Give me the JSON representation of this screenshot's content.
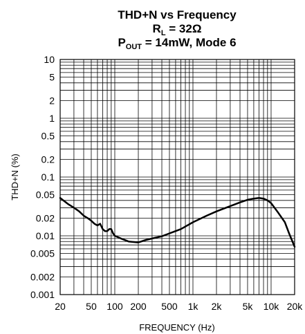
{
  "chart_data": {
    "type": "line",
    "title_parts": {
      "line1": "THD+N vs Frequency",
      "line2_main": "R",
      "line2_sub": "L",
      "line2_rest": " = 32Ω",
      "line3_main": "P",
      "line3_sub": "OUT",
      "line3_rest": " = 14mW, Mode 6"
    },
    "xlabel": "FREQUENCY (Hz)",
    "ylabel": "THD+N (%)",
    "x_scale": "log",
    "y_scale": "log",
    "xlim": [
      20,
      20000
    ],
    "ylim": [
      0.001,
      10
    ],
    "grid": true,
    "x_tick_labels": [
      "20",
      "50",
      "100",
      "200",
      "500",
      "1k",
      "2k",
      "5k",
      "10k",
      "20k"
    ],
    "x_tick_values": [
      20,
      50,
      100,
      200,
      500,
      1000,
      2000,
      5000,
      10000,
      20000
    ],
    "y_tick_labels": [
      "10",
      "5",
      "2",
      "1",
      "0.5",
      "0.2",
      "0.1",
      "0.05",
      "0.02",
      "0.01",
      "0.005",
      "0.002",
      "0.001"
    ],
    "y_tick_values": [
      10,
      5,
      2,
      1,
      0.5,
      0.2,
      0.1,
      0.05,
      0.02,
      0.01,
      0.005,
      0.002,
      0.001
    ],
    "series": [
      {
        "x": [
          20,
          25,
          30,
          35,
          40,
          45,
          50,
          55,
          60,
          65,
          70,
          75,
          80,
          85,
          90,
          95,
          100,
          120,
          150,
          200,
          250,
          300,
          400,
          500,
          700,
          1000,
          1500,
          2000,
          3000,
          4000,
          5000,
          6000,
          7000,
          8000,
          9000,
          10000,
          12000,
          15000,
          17000,
          20000
        ],
        "y": [
          0.044,
          0.035,
          0.03,
          0.026,
          0.022,
          0.02,
          0.018,
          0.016,
          0.015,
          0.016,
          0.013,
          0.012,
          0.012,
          0.013,
          0.013,
          0.011,
          0.01,
          0.009,
          0.008,
          0.0077,
          0.0085,
          0.009,
          0.0098,
          0.011,
          0.013,
          0.017,
          0.022,
          0.026,
          0.032,
          0.037,
          0.041,
          0.043,
          0.044,
          0.043,
          0.04,
          0.036,
          0.026,
          0.017,
          0.011,
          0.0065
        ],
        "color": "#000000"
      }
    ]
  }
}
